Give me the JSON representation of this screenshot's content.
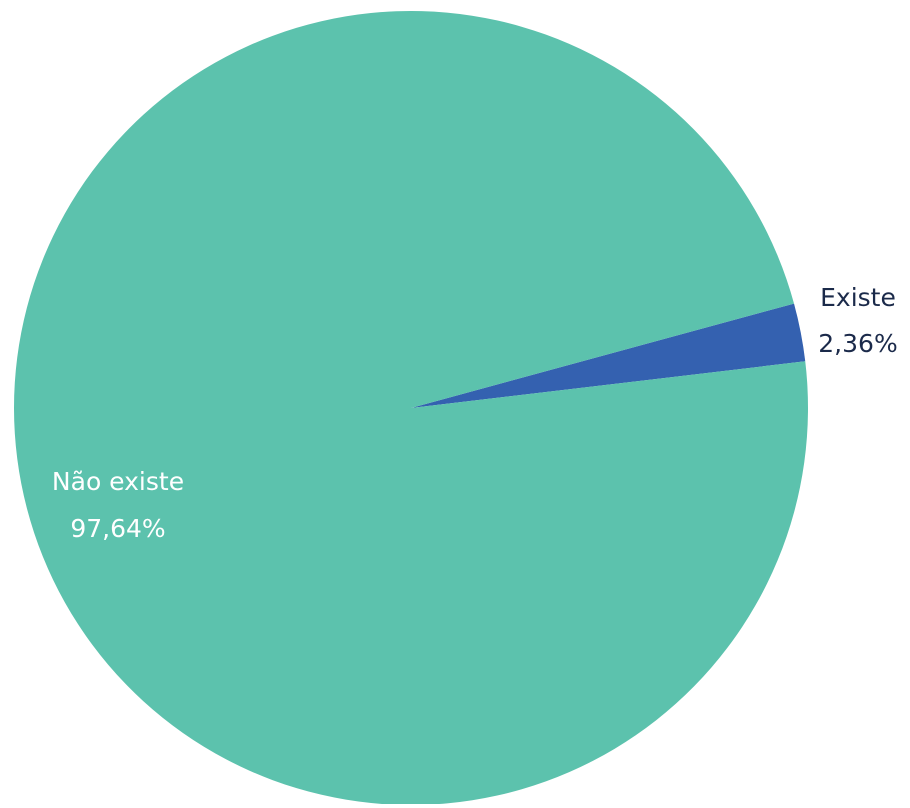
{
  "chart_data": {
    "type": "pie",
    "slices": [
      {
        "label": "Existe",
        "value": 2.36,
        "value_text": "2,36%",
        "color": "#3461b0",
        "label_position": "outside"
      },
      {
        "label": "Não existe",
        "value": 97.64,
        "value_text": "97,64%",
        "color": "#5cc2ad",
        "label_position": "inside"
      }
    ]
  }
}
